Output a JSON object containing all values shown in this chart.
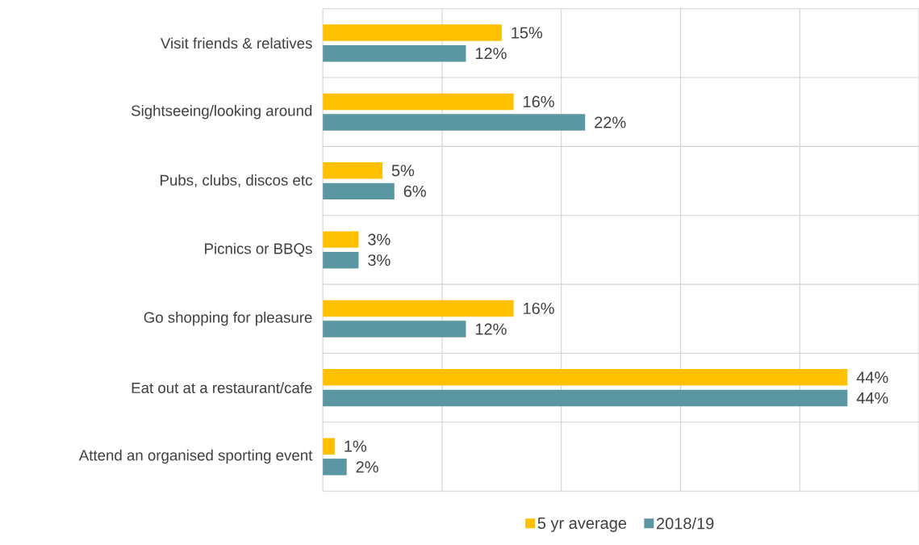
{
  "chart_data": {
    "type": "bar",
    "orientation": "horizontal",
    "categories": [
      "Visit friends & relatives",
      "Sightseeing/looking around",
      "Pubs, clubs, discos etc",
      "Picnics or BBQs",
      "Go shopping for pleasure",
      "Eat out at a restaurant/cafe",
      "Attend an organised sporting event"
    ],
    "series": [
      {
        "name": "5 yr average",
        "color": "#ffc000",
        "values": [
          15,
          16,
          5,
          3,
          16,
          44,
          1
        ],
        "value_labels": [
          "15%",
          "16%",
          "5%",
          "3%",
          "16%",
          "44%",
          "1%"
        ]
      },
      {
        "name": "2018/19",
        "color": "#5b97a3",
        "values": [
          12,
          22,
          6,
          3,
          12,
          44,
          2
        ],
        "value_labels": [
          "12%",
          "22%",
          "6%",
          "3%",
          "12%",
          "44%",
          "2%"
        ]
      }
    ],
    "xlim": [
      0,
      50
    ],
    "xticks": [
      {
        "value": 0,
        "label": null
      },
      {
        "value": 10,
        "label": null
      },
      {
        "value": 20,
        "label": null
      },
      {
        "value": 30,
        "label": null
      },
      {
        "value": 40,
        "label": null
      },
      {
        "value": 50,
        "label": null
      }
    ],
    "tick_labels": "y",
    "grid": true,
    "legend": "bottom"
  }
}
